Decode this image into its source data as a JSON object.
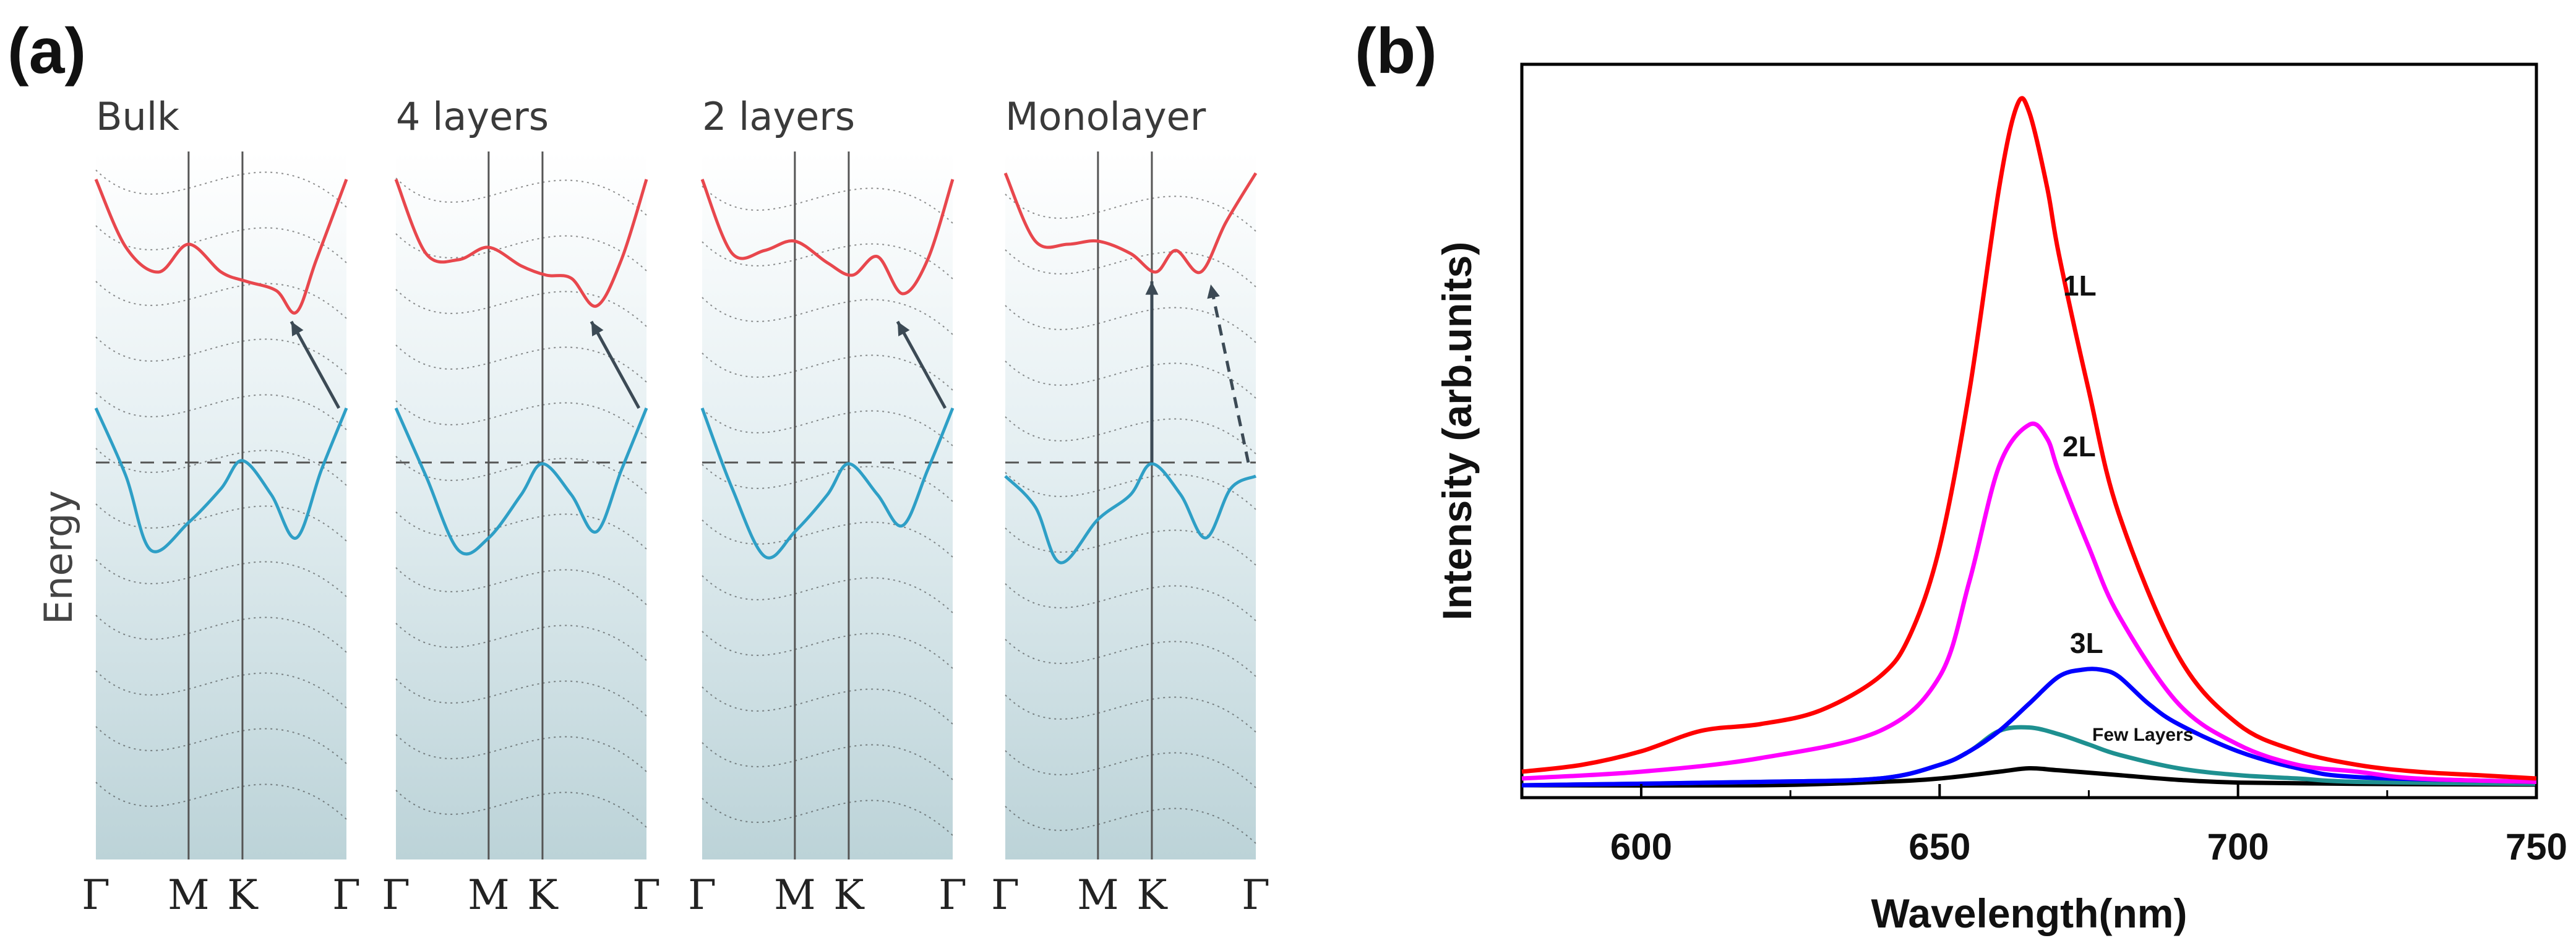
{
  "figure": {
    "panel_a_label": "(a)",
    "panel_b_label": "(b)"
  },
  "band_panels": {
    "ylabel": "Energy",
    "kpoint_labels": [
      "Γ",
      "M",
      "K",
      "Γ"
    ],
    "panels": [
      {
        "title": "Bulk"
      },
      {
        "title": "4 layers"
      },
      {
        "title": "2 layers"
      },
      {
        "title": "Monolayer"
      }
    ],
    "colors": {
      "conduction": "#e8474d",
      "valence": "#2e9fc6",
      "grid": "#555555"
    }
  },
  "chart_data": {
    "type": "line",
    "title": "",
    "xlabel": "Wavelength(nm)",
    "ylabel": "Intensity (arb.units)",
    "xlim": [
      580,
      750
    ],
    "ylim": [
      0,
      1.05
    ],
    "xticks": [
      600,
      650,
      700,
      750
    ],
    "yticks_shown": false,
    "series": [
      {
        "name": "1L",
        "label": "1L",
        "color": "#ff0000",
        "x": [
          580,
          590,
          600,
          610,
          620,
          630,
          640,
          645,
          650,
          655,
          660,
          663,
          665,
          668,
          670,
          675,
          680,
          690,
          700,
          710,
          720,
          730,
          740,
          750
        ],
        "y": [
          0.02,
          0.03,
          0.05,
          0.08,
          0.09,
          0.11,
          0.16,
          0.22,
          0.35,
          0.58,
          0.88,
          1.0,
          0.99,
          0.88,
          0.78,
          0.58,
          0.4,
          0.19,
          0.09,
          0.05,
          0.03,
          0.02,
          0.015,
          0.01
        ]
      },
      {
        "name": "2L",
        "label": "2L",
        "color": "#ff00ff",
        "x": [
          580,
          600,
          620,
          640,
          650,
          655,
          660,
          665,
          668,
          670,
          675,
          680,
          690,
          700,
          710,
          720,
          730,
          750
        ],
        "y": [
          0.01,
          0.02,
          0.04,
          0.08,
          0.16,
          0.3,
          0.47,
          0.53,
          0.51,
          0.46,
          0.35,
          0.25,
          0.12,
          0.06,
          0.03,
          0.02,
          0.01,
          0.005
        ]
      },
      {
        "name": "3L",
        "label": "3L",
        "color": "#0000ff",
        "x": [
          580,
          620,
          640,
          650,
          655,
          660,
          665,
          670,
          674,
          677,
          680,
          685,
          690,
          700,
          710,
          720,
          750
        ],
        "y": [
          0.0,
          0.005,
          0.01,
          0.03,
          0.05,
          0.08,
          0.12,
          0.16,
          0.17,
          0.17,
          0.16,
          0.12,
          0.09,
          0.05,
          0.025,
          0.012,
          0.005
        ]
      },
      {
        "name": "Few Layers",
        "label": "Few Layers",
        "color": "#1e9090",
        "x": [
          580,
          620,
          640,
          650,
          655,
          660,
          665,
          670,
          675,
          680,
          690,
          700,
          710,
          720,
          750
        ],
        "y": [
          0.0,
          0.005,
          0.01,
          0.03,
          0.05,
          0.08,
          0.085,
          0.075,
          0.06,
          0.045,
          0.025,
          0.015,
          0.01,
          0.005,
          0.002
        ]
      },
      {
        "name": "Black",
        "label": "",
        "color": "#000000",
        "x": [
          580,
          620,
          640,
          650,
          660,
          665,
          670,
          680,
          690,
          700,
          720,
          750
        ],
        "y": [
          0.0,
          0.0,
          0.005,
          0.01,
          0.02,
          0.025,
          0.022,
          0.015,
          0.008,
          0.004,
          0.002,
          0.001
        ]
      }
    ]
  }
}
